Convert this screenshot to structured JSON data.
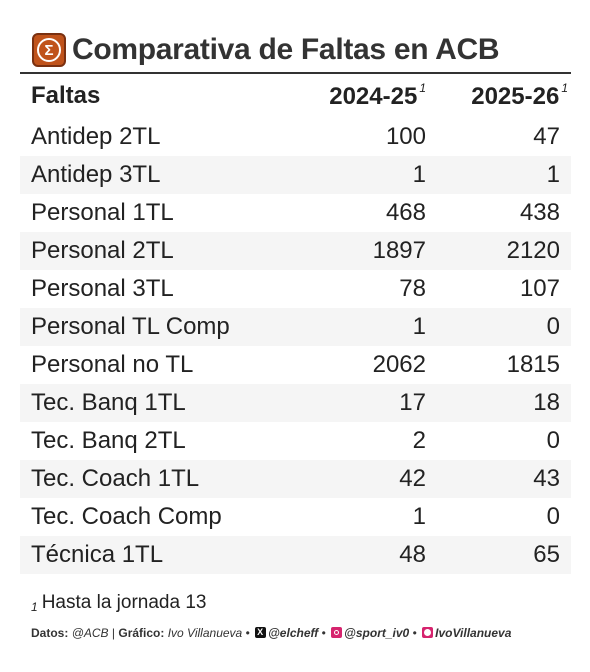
{
  "title": "Comparativa de Faltas en ACB",
  "logo_icon": "sigma-icon",
  "colors": {
    "logo_bg": "#c0531b",
    "stripe": "#f5f5f5",
    "social_pink": "#d6246e"
  },
  "table": {
    "headers": [
      "Faltas",
      "2024-25",
      "2025-26"
    ],
    "header_footnote_mark": "1",
    "rows": [
      [
        "Antidep 2TL",
        "100",
        "47"
      ],
      [
        "Antidep 3TL",
        "1",
        "1"
      ],
      [
        "Personal 1TL",
        "468",
        "438"
      ],
      [
        "Personal 2TL",
        "1897",
        "2120"
      ],
      [
        "Personal 3TL",
        "78",
        "107"
      ],
      [
        "Personal TL Comp",
        "1",
        "0"
      ],
      [
        "Personal no TL",
        "2062",
        "1815"
      ],
      [
        "Tec. Banq 1TL",
        "17",
        "18"
      ],
      [
        "Tec. Banq 2TL",
        "2",
        "0"
      ],
      [
        "Tec. Coach 1TL",
        "42",
        "43"
      ],
      [
        "Tec. Coach Comp",
        "1",
        "0"
      ],
      [
        "Técnica 1TL",
        "48",
        "65"
      ]
    ]
  },
  "footnote": {
    "mark": "1",
    "text": "Hasta la jornada 13"
  },
  "credits": {
    "datos_label": "Datos:",
    "datos_value": "@ACB",
    "separator": "|",
    "grafico_label": "Gráfico:",
    "grafico_value": "Ivo Villanueva",
    "dot": "•",
    "x_handle": "@elcheff",
    "ig_handle": "@sport_iv0",
    "gh_handle": "IvoVillanueva"
  }
}
